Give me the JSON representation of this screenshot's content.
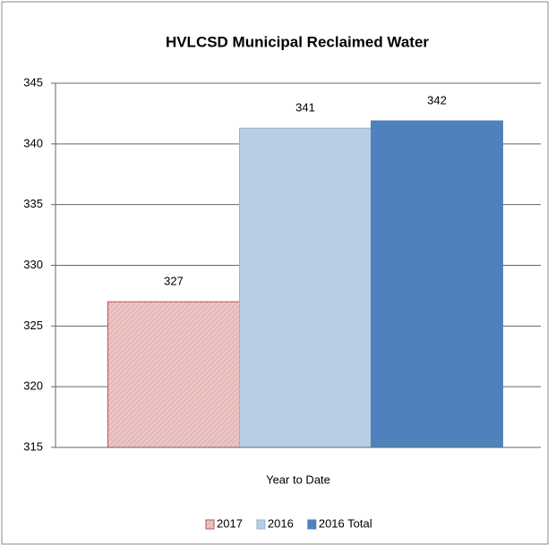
{
  "chart_data": {
    "type": "bar",
    "title": "HVLCSD Municipal Reclaimed Water",
    "categories": [
      "Year to Date"
    ],
    "series": [
      {
        "name": "2017",
        "color": "#e6b9b8",
        "values": [
          327
        ]
      },
      {
        "name": "2016",
        "color": "#b9cde5",
        "values": [
          341.3
        ],
        "value_labels": [
          "341"
        ]
      },
      {
        "name": "2016 Total",
        "color": "#4f81bd",
        "values": [
          341.9
        ],
        "value_labels": [
          "342"
        ]
      }
    ],
    "ylim": [
      315,
      345
    ],
    "yticks": [
      315,
      320,
      325,
      330,
      335,
      340,
      345
    ],
    "grid": true,
    "legend": "bottom"
  }
}
